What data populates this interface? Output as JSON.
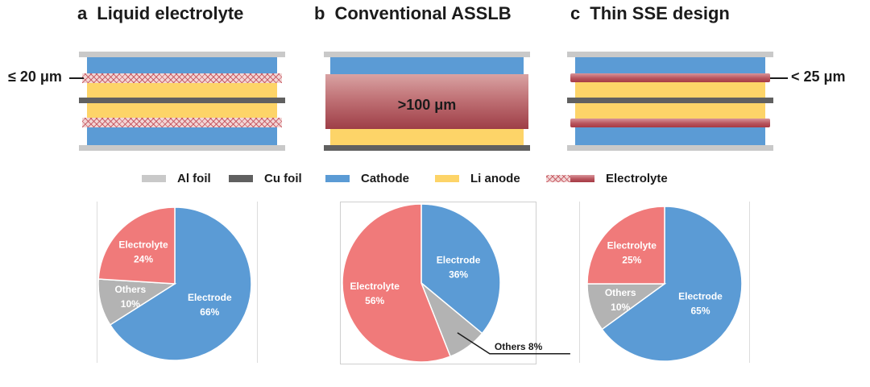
{
  "panels": {
    "a": {
      "letter": "a",
      "title": "Liquid electrolyte",
      "thickness": "≤ 20 μm"
    },
    "b": {
      "letter": "b",
      "title": "Conventional ASSLB",
      "thickness": ">100 μm"
    },
    "c": {
      "letter": "c",
      "title": "Thin SSE design",
      "thickness": "< 25 μm"
    }
  },
  "legend": {
    "al_foil": "Al foil",
    "cu_foil": "Cu foil",
    "cathode": "Cathode",
    "li_anode": "Li anode",
    "electrolyte": "Electrolyte"
  },
  "colors": {
    "al_foil": "#c9c9c9",
    "cu_foil": "#606060",
    "cathode": "#5b9bd5",
    "li_anode": "#fdd468",
    "electrolyte_pie": "#f07a7a",
    "others_pie": "#b3b3b3",
    "electrode_pie": "#5b9bd5"
  },
  "chart_data": [
    {
      "type": "pie",
      "panel": "a",
      "slices": [
        {
          "label": "Electrode",
          "value": 66,
          "text": "66%",
          "color": "#5b9bd5"
        },
        {
          "label": "Others",
          "value": 10,
          "text": "10%",
          "color": "#b3b3b3"
        },
        {
          "label": "Electrolyte",
          "value": 24,
          "text": "24%",
          "color": "#f07a7a"
        }
      ]
    },
    {
      "type": "pie",
      "panel": "b",
      "slices": [
        {
          "label": "Electrode",
          "value": 36,
          "text": "36%",
          "color": "#5b9bd5"
        },
        {
          "label": "Others",
          "value": 8,
          "text": "8%",
          "color": "#b3b3b3"
        },
        {
          "label": "Electrolyte",
          "value": 56,
          "text": "56%",
          "color": "#f07a7a"
        }
      ]
    },
    {
      "type": "pie",
      "panel": "c",
      "slices": [
        {
          "label": "Electrode",
          "value": 65,
          "text": "65%",
          "color": "#5b9bd5"
        },
        {
          "label": "Others",
          "value": 10,
          "text": "10%",
          "color": "#b3b3b3"
        },
        {
          "label": "Electrolyte",
          "value": 25,
          "text": "25%",
          "color": "#f07a7a"
        }
      ]
    }
  ]
}
